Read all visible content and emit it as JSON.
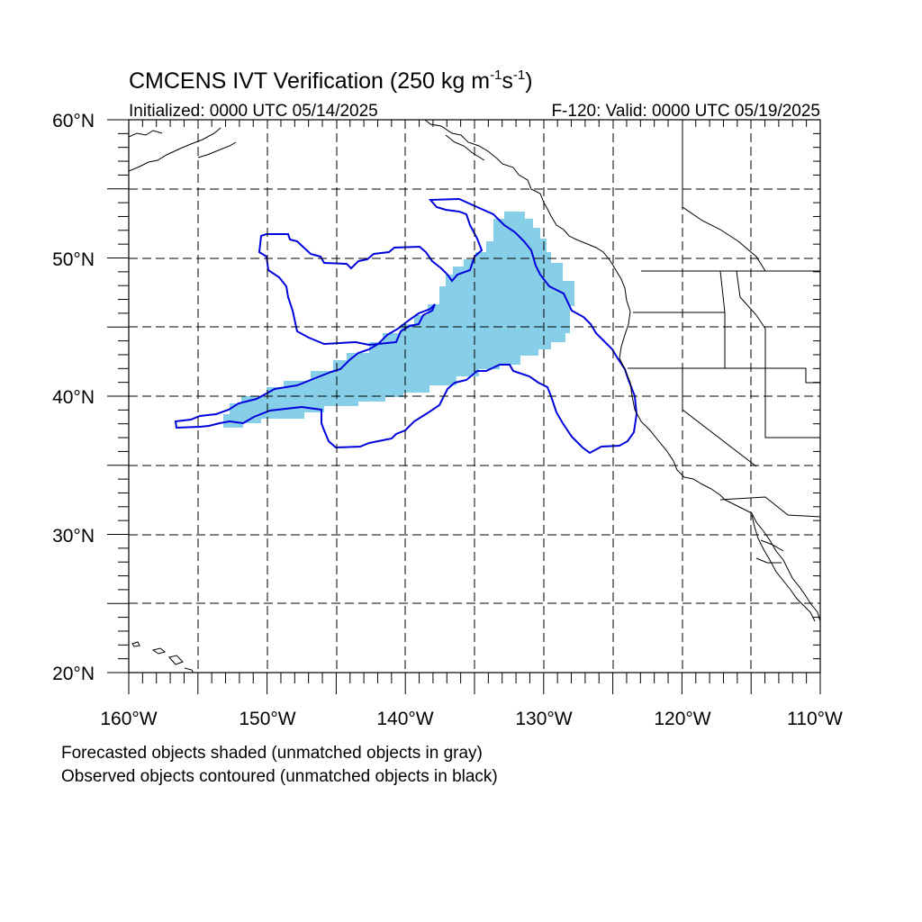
{
  "title_prefix": "CMCENS IVT Verification (250 kg m",
  "title_sup1": "-1",
  "title_mid": "s",
  "title_sup2": "-1",
  "title_suffix": ")",
  "left_subtitle": "Initialized: 0000 UTC 05/14/2025",
  "right_subtitle": "F-120: Valid: 0000 UTC 05/19/2025",
  "footnotes": [
    "Forecasted objects shaded (unmatched objects in gray)",
    "Observed objects contoured (unmatched objects in black)"
  ],
  "map": {
    "lon_range": [
      -160,
      -110
    ],
    "lat_range": [
      20,
      60
    ],
    "lon_tick_labels": [
      "160°W",
      "150°W",
      "140°W",
      "130°W",
      "120°W",
      "110°W"
    ],
    "lat_tick_labels": [
      "20°N",
      "30°N",
      "40°N",
      "50°N",
      "60°N"
    ],
    "gridlines": "dashed, every 5 degrees",
    "colors": {
      "forecast_fill": "#87CEE8",
      "observed_contour": "#0000DD",
      "coastline": "#000000"
    }
  }
}
